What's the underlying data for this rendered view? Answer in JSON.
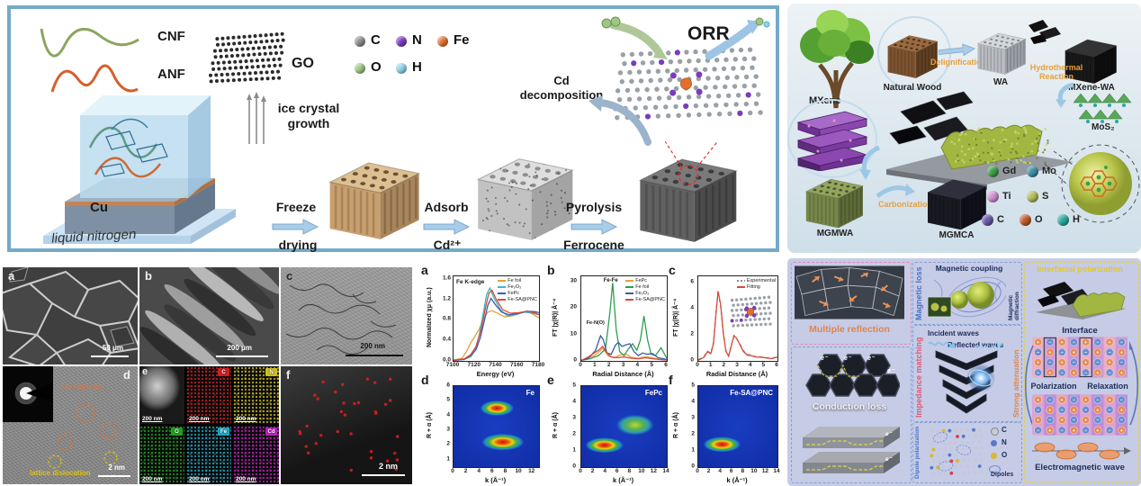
{
  "synthesis": {
    "cnf": "CNF",
    "anf": "ANF",
    "go": "GO",
    "orr": "ORR",
    "ice_line1": "ice crystal",
    "ice_line2": "growth",
    "cu": "Cu",
    "liquid_nitrogen": "liquid nitrogen",
    "step1_top": "Freeze",
    "step1_bottom": "drying",
    "step2_top": "Adsorb",
    "step2_bottom": "Cd²⁺",
    "step3_top": "Pyrolysis",
    "step3_bottom": "Ferrocene",
    "cd_line1": "Cd",
    "cd_line2": "decomposition",
    "atoms": [
      {
        "label": "C",
        "color": "#8c8c8c"
      },
      {
        "label": "N",
        "color": "#7a3bbf"
      },
      {
        "label": "Fe",
        "color": "#e2702d"
      },
      {
        "label": "O",
        "color": "#9dc783"
      },
      {
        "label": "H",
        "color": "#8ed4ea"
      }
    ]
  },
  "microscopy": {
    "a": {
      "letter": "a",
      "scale": "50 μm"
    },
    "b": {
      "letter": "b",
      "scale": "200 μm"
    },
    "c": {
      "letter": "c",
      "scale": "200 nm"
    },
    "d": {
      "letter": "d",
      "scale": "2 nm",
      "note_top": "micropores",
      "note_bottom": "lattice dislocation"
    },
    "e": {
      "letter": "e",
      "scale": "200 nm",
      "maps": [
        {
          "label": "C",
          "color": "#d02020"
        },
        {
          "label": "N",
          "color": "#d0c020"
        },
        {
          "label": "O",
          "color": "#20a020"
        },
        {
          "label": "Fe",
          "color": "#20a8c8"
        },
        {
          "label": "Cd",
          "color": "#c020c0"
        }
      ]
    },
    "f": {
      "letter": "f",
      "scale": "2 nm"
    }
  },
  "spectra": {
    "letters": [
      "a",
      "b",
      "c",
      "d",
      "e",
      "f"
    ],
    "title_a": "Fe K-edge",
    "anno_fefe": "Fe-Fe",
    "anno_feno": "Fe-N(O)"
  },
  "chart_data": [
    {
      "id": "xanes",
      "type": "line",
      "title": "Fe K-edge",
      "xlabel": "Energy (eV)",
      "ylabel": "Normalized χμ (a.u.)",
      "xlim": [
        7100,
        7180
      ],
      "ylim": [
        0,
        1.65
      ],
      "xticks": [
        "7100",
        "7120",
        "7140",
        "7160",
        "7180"
      ],
      "yticks": [
        "0.0",
        "0.4",
        "0.8",
        "1.2",
        "1.6"
      ],
      "series": [
        {
          "name": "Fe foil",
          "color": "#e2a33c",
          "x": [
            7100,
            7108,
            7112,
            7116,
            7120,
            7124,
            7128,
            7132,
            7136,
            7142,
            7148,
            7155,
            7162,
            7170,
            7180
          ],
          "y": [
            0.02,
            0.05,
            0.18,
            0.35,
            0.48,
            0.62,
            0.82,
            0.95,
            0.98,
            0.92,
            0.86,
            0.88,
            0.93,
            0.96,
            0.84
          ]
        },
        {
          "name": "Fe₂O₃",
          "color": "#3cb8c8",
          "x": [
            7100,
            7110,
            7116,
            7120,
            7124,
            7128,
            7131,
            7134,
            7138,
            7144,
            7150,
            7158,
            7166,
            7174,
            7180
          ],
          "y": [
            0.01,
            0.03,
            0.08,
            0.2,
            0.5,
            0.95,
            1.3,
            1.42,
            1.22,
            1.0,
            0.88,
            0.9,
            0.95,
            0.93,
            0.9
          ]
        },
        {
          "name": "FePc",
          "color": "#3c5ca8",
          "x": [
            7100,
            7110,
            7116,
            7121,
            7125,
            7129,
            7132,
            7135,
            7139,
            7145,
            7152,
            7160,
            7168,
            7176,
            7180
          ],
          "y": [
            0.01,
            0.03,
            0.1,
            0.22,
            0.45,
            0.8,
            1.08,
            1.22,
            1.1,
            0.95,
            0.9,
            0.92,
            0.97,
            0.96,
            0.94
          ]
        },
        {
          "name": "Fe-SA@PNC",
          "color": "#d84a3c",
          "x": [
            7100,
            7110,
            7116,
            7121,
            7126,
            7130,
            7133,
            7136,
            7140,
            7146,
            7153,
            7161,
            7169,
            7177,
            7180
          ],
          "y": [
            0.01,
            0.04,
            0.12,
            0.28,
            0.62,
            1.05,
            1.32,
            1.38,
            1.2,
            1.0,
            0.93,
            0.94,
            0.97,
            0.93,
            0.9
          ]
        }
      ]
    },
    {
      "id": "exafs",
      "type": "line",
      "xlabel": "Radial Distance (Å)",
      "ylabel": "FT |χ(R)| Å⁻⁴",
      "xlim": [
        0,
        6
      ],
      "ylim": [
        0,
        32
      ],
      "xticks": [
        "0",
        "1",
        "2",
        "3",
        "4",
        "5",
        "6"
      ],
      "yticks": [
        "0",
        "10",
        "20",
        "30"
      ],
      "series": [
        {
          "name": "FePc",
          "color": "#e2a33c",
          "x": [
            0,
            0.5,
            0.9,
            1.2,
            1.5,
            1.9,
            2.3,
            2.7,
            3.1,
            3.5,
            4,
            4.5,
            5,
            5.5,
            6
          ],
          "y": [
            0.2,
            1.2,
            2,
            3.2,
            4.8,
            1.8,
            1.2,
            2.2,
            2.6,
            1.4,
            1,
            1.6,
            1.2,
            0.6,
            0.4
          ]
        },
        {
          "name": "Fe foil",
          "color": "#2e9e50",
          "x": [
            0,
            0.6,
            1.2,
            1.7,
            2.0,
            2.2,
            2.45,
            2.7,
            3.0,
            3.3,
            3.6,
            3.9,
            4.15,
            4.4,
            4.65,
            4.9,
            5.2,
            5.6,
            6
          ],
          "y": [
            0.2,
            0.8,
            2.0,
            4.5,
            18,
            29.5,
            12,
            3.5,
            2.0,
            4.5,
            6.5,
            4.0,
            8,
            17,
            8,
            2.5,
            2.0,
            5.0,
            1.0
          ]
        },
        {
          "name": "Fe₂O₃",
          "color": "#3c5ca8",
          "x": [
            0,
            0.5,
            1.0,
            1.35,
            1.55,
            1.8,
            2.1,
            2.4,
            2.6,
            2.85,
            3.1,
            3.4,
            3.7,
            4.0,
            4.3,
            4.6,
            5.0,
            5.4,
            5.8,
            6
          ],
          "y": [
            0.2,
            1.0,
            4.0,
            9.5,
            8.0,
            3.0,
            2.5,
            6.0,
            7.0,
            5.5,
            6.0,
            6.5,
            3.5,
            2.0,
            3.0,
            2.5,
            2.8,
            1.2,
            0.8,
            0.5
          ]
        },
        {
          "name": "Fe-SA@PNC",
          "color": "#d84a3c",
          "x": [
            0,
            0.5,
            0.9,
            1.2,
            1.5,
            1.8,
            2.1,
            2.5,
            3.0,
            3.5,
            4.0,
            4.5,
            5.0,
            5.5,
            6
          ],
          "y": [
            0.2,
            1.5,
            3.0,
            4.0,
            5.5,
            3.0,
            1.5,
            1.2,
            1.5,
            1.0,
            0.8,
            1.2,
            0.8,
            0.5,
            0.3
          ]
        }
      ]
    },
    {
      "id": "fit",
      "type": "line",
      "xlabel": "Radial Distance (Å)",
      "ylabel": "FT |χ(R)| Å⁻⁴",
      "xlim": [
        0,
        6
      ],
      "ylim": [
        0,
        6.5
      ],
      "xticks": [
        "0",
        "1",
        "2",
        "3",
        "4",
        "5",
        "6"
      ],
      "yticks": [
        "0",
        "2",
        "4",
        "6"
      ],
      "series": [
        {
          "name": "Experimental",
          "color": "#888888",
          "dash": true,
          "x": [
            0,
            0.4,
            0.7,
            0.95,
            1.15,
            1.35,
            1.5,
            1.7,
            1.9,
            2.1,
            2.3,
            2.5,
            2.7,
            2.9,
            3.1,
            3.4,
            3.7,
            4.0,
            4.4,
            4.8,
            5.2,
            5.6,
            6.0
          ],
          "y": [
            0.1,
            0.3,
            0.75,
            0.6,
            1.4,
            3.8,
            5.4,
            4.2,
            2.0,
            0.7,
            0.4,
            1.2,
            1.9,
            1.7,
            1.4,
            0.8,
            0.5,
            0.45,
            0.3,
            0.3,
            0.25,
            0.2,
            0.35
          ]
        },
        {
          "name": "Fitting",
          "color": "#d84a3c",
          "x": [
            0,
            0.4,
            0.7,
            0.95,
            1.15,
            1.35,
            1.5,
            1.7,
            1.9,
            2.1,
            2.3,
            2.5,
            2.7,
            2.9,
            3.1,
            3.4,
            3.7,
            4.0,
            4.4,
            4.8,
            5.2,
            5.6,
            6.0
          ],
          "y": [
            0.05,
            0.25,
            0.7,
            0.55,
            1.3,
            3.7,
            5.35,
            4.3,
            2.1,
            0.75,
            0.35,
            1.15,
            1.95,
            1.75,
            1.35,
            0.75,
            0.45,
            0.4,
            0.3,
            0.28,
            0.22,
            0.18,
            0.3
          ]
        }
      ]
    },
    {
      "id": "wt-fe",
      "type": "heatmap",
      "label": "Fe",
      "xlabel": "k (Å⁻¹)",
      "ylabel": "R + α (Å)",
      "xlim": [
        0,
        13
      ],
      "ylim": [
        0.5,
        6
      ],
      "xticks": [
        "0",
        "2",
        "4",
        "6",
        "8",
        "10",
        "12"
      ],
      "yticks": [
        "1",
        "2",
        "3",
        "4",
        "5",
        "6"
      ],
      "hotspots": [
        {
          "k": 7.5,
          "R": 2.2,
          "sk": 3.4,
          "sR": 0.6,
          "level": 1
        },
        {
          "k": 6.6,
          "R": 4.5,
          "sk": 2.7,
          "sR": 0.55,
          "level": 0.95
        }
      ]
    },
    {
      "id": "wt-fepc",
      "type": "heatmap",
      "label": "FePc",
      "xlabel": "k (Å⁻¹)",
      "ylabel": "R + α (Å)",
      "xlim": [
        0,
        14
      ],
      "ylim": [
        0,
        5
      ],
      "xticks": [
        "0",
        "2",
        "4",
        "6",
        "8",
        "10",
        "12",
        "14"
      ],
      "yticks": [
        "0",
        "1",
        "2",
        "3",
        "4",
        "5"
      ],
      "hotspots": [
        {
          "k": 3.8,
          "R": 1.35,
          "sk": 3.3,
          "sR": 0.5,
          "level": 1
        },
        {
          "k": 8.8,
          "R": 2.6,
          "sk": 3.4,
          "sR": 0.7,
          "level": 0.4
        }
      ]
    },
    {
      "id": "wt-fesa",
      "type": "heatmap",
      "label": "Fe-SA@PNC",
      "xlabel": "k (Å⁻¹)",
      "ylabel": "R + α (Å)",
      "xlim": [
        0,
        14
      ],
      "ylim": [
        0,
        5
      ],
      "xticks": [
        "0",
        "2",
        "4",
        "6",
        "8",
        "10",
        "12",
        "14"
      ],
      "yticks": [
        "0",
        "1",
        "2",
        "3",
        "4",
        "5"
      ],
      "hotspots": [
        {
          "k": 4.2,
          "R": 1.4,
          "sk": 3.5,
          "sR": 0.5,
          "level": 1
        }
      ]
    }
  ],
  "wood": {
    "natural_wood": "Natural Wood",
    "wa": "WA",
    "mxene_wa": "MXene-WA",
    "mxene": "MXene",
    "mos2": "MoS₂",
    "mgmwa": "MGMWA",
    "mgmca": "MGMCA",
    "delignification": "Delignification",
    "hydrothermal_1": "Hydrothermal",
    "hydrothermal_2": "Reaction",
    "carbonization": "Carbonization",
    "legend": [
      {
        "label": "Gd",
        "color": "#3da048"
      },
      {
        "label": "Mo",
        "color": "#3e8fa8"
      },
      {
        "label": "Ti",
        "color": "#cf8fd0"
      },
      {
        "label": "S",
        "color": "#b4bc5a"
      },
      {
        "label": "C",
        "color": "#6a5aaa"
      },
      {
        "label": "O",
        "color": "#c05a28"
      },
      {
        "label": "H",
        "color": "#2aa8a0"
      }
    ]
  },
  "mechanism": {
    "multiple_reflection": "Multiple reflection",
    "magnetic_loss": "Magnetic loss",
    "magnetic_coupling": "Magnetic coupling",
    "magnetic_diffraction": "Magnetic diffraction",
    "interfacial_polarization": "Interfacial polarization",
    "impedance_matching": "Impedance matching",
    "incident_waves": "Incident waves",
    "reflected_waves": "Reflected waves",
    "strong_attenuation": "Strong attenuation",
    "conduction_loss": "Conduction loss",
    "dipole_polarization": "Dipole polarization",
    "interface": "Interface",
    "polarization": "Polarization",
    "relaxation": "Relaxation",
    "electromagnetic_wave": "Electromagnetic wave",
    "dipoles": "Dipoles",
    "electron": "e⁻",
    "atom_legend": [
      {
        "label": "C",
        "color": "#c8ccd4"
      },
      {
        "label": "N",
        "color": "#5878c8"
      },
      {
        "label": "O",
        "color": "#d8b830"
      }
    ]
  }
}
